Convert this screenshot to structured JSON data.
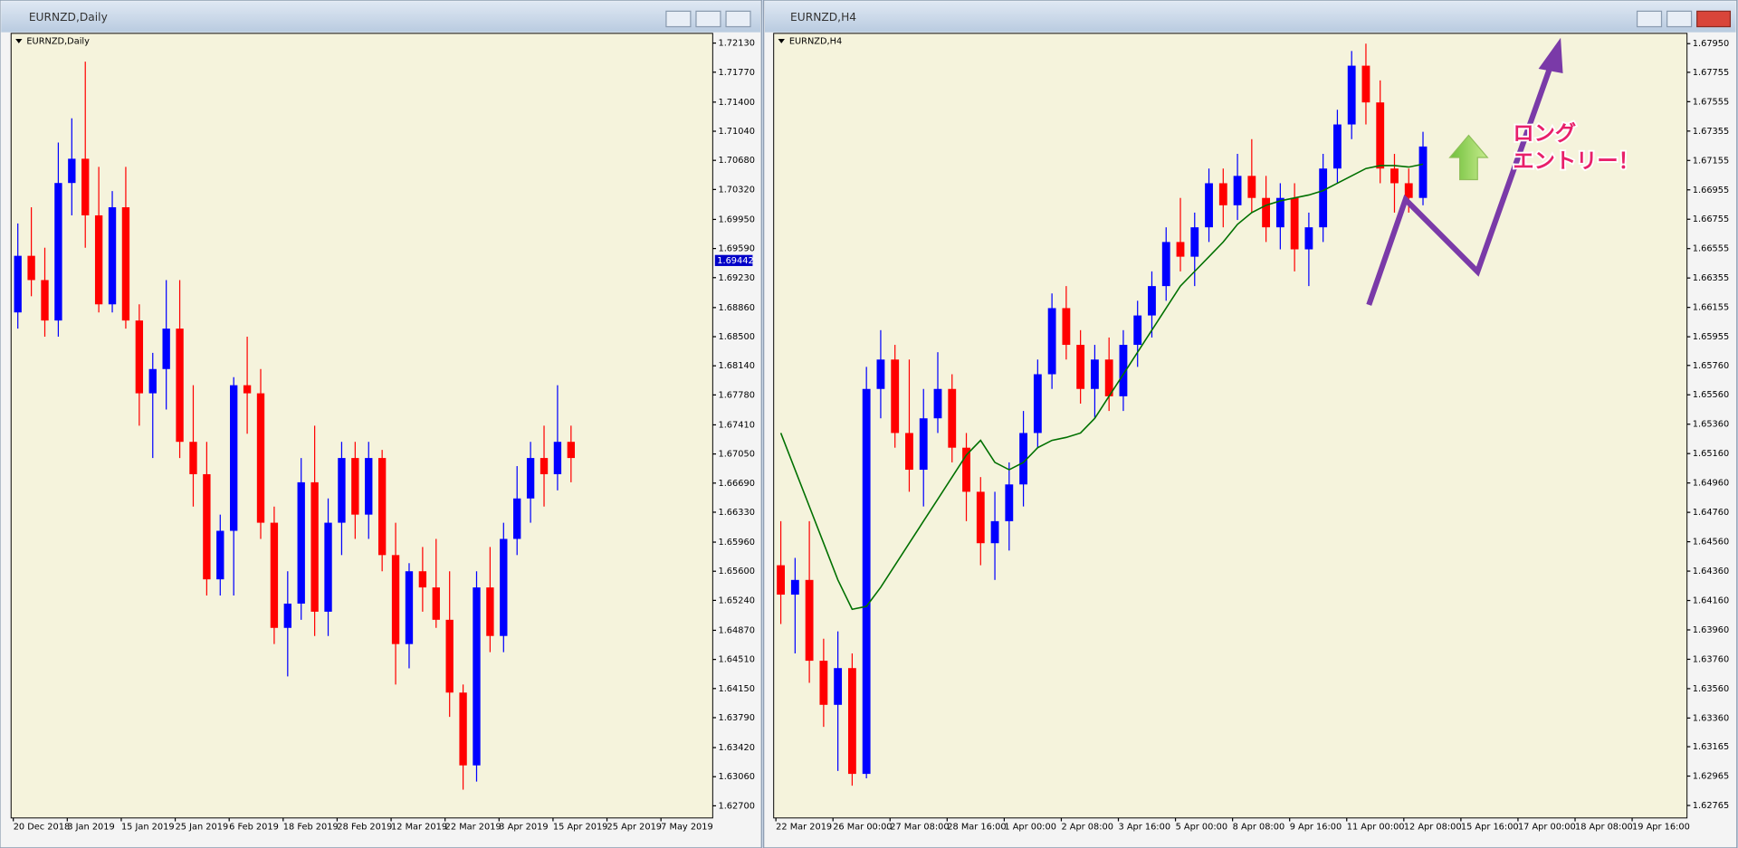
{
  "windows": [
    {
      "title": "EURNZD,Daily"
    },
    {
      "title": "EURNZD,H4"
    }
  ],
  "chart_data": [
    {
      "type": "candlestick",
      "label": "EURNZD,Daily",
      "up_color": "#0000ff",
      "down_color": "#ff0000",
      "background": "#f5f3dc",
      "categories": [
        "20 Dec 2018",
        null,
        null,
        null,
        "3 Jan 2019",
        null,
        null,
        null,
        "15 Jan 2019",
        null,
        null,
        null,
        "25 Jan 2019",
        null,
        null,
        null,
        "6 Feb 2019",
        null,
        null,
        null,
        "18 Feb 2019",
        null,
        null,
        null,
        "28 Feb 2019",
        null,
        null,
        null,
        "12 Mar 2019",
        null,
        null,
        null,
        "22 Mar 2019",
        null,
        null,
        null,
        "3 Apr 2019",
        null,
        null,
        null,
        "15 Apr 2019",
        null,
        null,
        null,
        "25 Apr 2019",
        null,
        null,
        null,
        "7 May 2019",
        null,
        null,
        null
      ],
      "ohlc": [
        [
          1.688,
          1.699,
          1.686,
          1.695
        ],
        [
          1.695,
          1.701,
          1.69,
          1.692
        ],
        [
          1.692,
          1.696,
          1.685,
          1.687
        ],
        [
          1.687,
          1.709,
          1.685,
          1.704
        ],
        [
          1.704,
          1.712,
          1.7,
          1.707
        ],
        [
          1.707,
          1.719,
          1.696,
          1.7
        ],
        [
          1.7,
          1.706,
          1.688,
          1.689
        ],
        [
          1.689,
          1.703,
          1.688,
          1.701
        ],
        [
          1.701,
          1.706,
          1.686,
          1.687
        ],
        [
          1.687,
          1.689,
          1.674,
          1.678
        ],
        [
          1.678,
          1.683,
          1.67,
          1.681
        ],
        [
          1.681,
          1.692,
          1.676,
          1.686
        ],
        [
          1.686,
          1.692,
          1.67,
          1.672
        ],
        [
          1.672,
          1.679,
          1.664,
          1.668
        ],
        [
          1.668,
          1.672,
          1.653,
          1.655
        ],
        [
          1.655,
          1.663,
          1.653,
          1.661
        ],
        [
          1.661,
          1.68,
          1.653,
          1.679
        ],
        [
          1.679,
          1.685,
          1.673,
          1.678
        ],
        [
          1.678,
          1.681,
          1.66,
          1.662
        ],
        [
          1.662,
          1.664,
          1.647,
          1.649
        ],
        [
          1.649,
          1.656,
          1.643,
          1.652
        ],
        [
          1.652,
          1.67,
          1.65,
          1.667
        ],
        [
          1.667,
          1.674,
          1.648,
          1.651
        ],
        [
          1.651,
          1.665,
          1.648,
          1.662
        ],
        [
          1.662,
          1.672,
          1.658,
          1.67
        ],
        [
          1.67,
          1.672,
          1.66,
          1.663
        ],
        [
          1.663,
          1.672,
          1.66,
          1.67
        ],
        [
          1.67,
          1.671,
          1.656,
          1.658
        ],
        [
          1.658,
          1.662,
          1.642,
          1.647
        ],
        [
          1.647,
          1.657,
          1.644,
          1.656
        ],
        [
          1.656,
          1.659,
          1.651,
          1.654
        ],
        [
          1.654,
          1.66,
          1.649,
          1.65
        ],
        [
          1.65,
          1.656,
          1.638,
          1.641
        ],
        [
          1.641,
          1.642,
          1.629,
          1.632
        ],
        [
          1.632,
          1.656,
          1.63,
          1.654
        ],
        [
          1.654,
          1.659,
          1.646,
          1.648
        ],
        [
          1.648,
          1.662,
          1.646,
          1.66
        ],
        [
          1.66,
          1.669,
          1.658,
          1.665
        ],
        [
          1.665,
          1.672,
          1.662,
          1.67
        ],
        [
          1.67,
          1.674,
          1.664,
          1.668
        ],
        [
          1.668,
          1.679,
          1.666,
          1.672
        ],
        [
          1.672,
          1.674,
          1.667,
          1.67
        ],
        null,
        null,
        null,
        null,
        null,
        null,
        null,
        null,
        null,
        null
      ],
      "ylim": [
        1.6255,
        1.7225
      ],
      "yticks": [
        {
          "value": 1.7213,
          "label": "1.72130"
        },
        {
          "value": 1.7177,
          "label": "1.71770"
        },
        {
          "value": 1.714,
          "label": "1.71400"
        },
        {
          "value": 1.7104,
          "label": "1.71040"
        },
        {
          "value": 1.7068,
          "label": "1.70680"
        },
        {
          "value": 1.7032,
          "label": "1.70320"
        },
        {
          "value": 1.6995,
          "label": "1.69950"
        },
        {
          "value": 1.6959,
          "label": "1.69590"
        },
        {
          "value": 1.6923,
          "label": "1.69230"
        },
        {
          "value": 1.6886,
          "label": "1.68860"
        },
        {
          "value": 1.685,
          "label": "1.68500"
        },
        {
          "value": 1.6814,
          "label": "1.68140"
        },
        {
          "value": 1.6778,
          "label": "1.67780"
        },
        {
          "value": 1.6741,
          "label": "1.67410"
        },
        {
          "value": 1.6705,
          "label": "1.67050"
        },
        {
          "value": 1.6669,
          "label": "1.66690"
        },
        {
          "value": 1.6633,
          "label": "1.66330"
        },
        {
          "value": 1.6596,
          "label": "1.65960"
        },
        {
          "value": 1.656,
          "label": "1.65600"
        },
        {
          "value": 1.6524,
          "label": "1.65240"
        },
        {
          "value": 1.6487,
          "label": "1.64870"
        },
        {
          "value": 1.6451,
          "label": "1.64510"
        },
        {
          "value": 1.6415,
          "label": "1.64150"
        },
        {
          "value": 1.6379,
          "label": "1.63790"
        },
        {
          "value": 1.6342,
          "label": "1.63420"
        },
        {
          "value": 1.6306,
          "label": "1.63060"
        },
        {
          "value": 1.627,
          "label": "1.62700"
        }
      ],
      "price_marker": {
        "value": 1.69442,
        "label": "1.69442"
      }
    },
    {
      "type": "candlestick",
      "label": "EURNZD,H4",
      "up_color": "#0000ff",
      "down_color": "#ff0000",
      "background": "#f5f3dc",
      "categories": [
        "22 Mar 2019",
        null,
        null,
        null,
        "26 Mar 00:00",
        null,
        null,
        null,
        "27 Mar 08:00",
        null,
        null,
        null,
        "28 Mar 16:00",
        null,
        null,
        null,
        "1 Apr 00:00",
        null,
        null,
        null,
        "2 Apr 08:00",
        null,
        null,
        null,
        "3 Apr 16:00",
        null,
        null,
        null,
        "5 Apr 00:00",
        null,
        null,
        null,
        "8 Apr 08:00",
        null,
        null,
        null,
        "9 Apr 16:00",
        null,
        null,
        null,
        "11 Apr 00:00",
        null,
        null,
        null,
        "12 Apr 08:00",
        null,
        null,
        null,
        "15 Apr 16:00",
        null,
        null,
        null,
        "17 Apr 00:00",
        null,
        null,
        null,
        "18 Apr 08:00",
        null,
        null,
        null,
        "19 Apr 16:00",
        null,
        null,
        null
      ],
      "ohlc": [
        [
          1.644,
          1.647,
          1.64,
          1.642
        ],
        [
          1.642,
          1.6445,
          1.638,
          1.643
        ],
        [
          1.643,
          1.647,
          1.636,
          1.6375
        ],
        [
          1.6375,
          1.639,
          1.633,
          1.6345
        ],
        [
          1.6345,
          1.6395,
          1.63,
          1.637
        ],
        [
          1.637,
          1.638,
          1.629,
          1.6298
        ],
        [
          1.6298,
          1.6575,
          1.6295,
          1.656
        ],
        [
          1.656,
          1.66,
          1.654,
          1.658
        ],
        [
          1.658,
          1.659,
          1.652,
          1.653
        ],
        [
          1.653,
          1.658,
          1.649,
          1.6505
        ],
        [
          1.6505,
          1.656,
          1.648,
          1.654
        ],
        [
          1.654,
          1.6585,
          1.653,
          1.656
        ],
        [
          1.656,
          1.657,
          1.651,
          1.652
        ],
        [
          1.652,
          1.653,
          1.647,
          1.649
        ],
        [
          1.649,
          1.65,
          1.644,
          1.6455
        ],
        [
          1.6455,
          1.649,
          1.643,
          1.647
        ],
        [
          1.647,
          1.651,
          1.645,
          1.6495
        ],
        [
          1.6495,
          1.6545,
          1.648,
          1.653
        ],
        [
          1.653,
          1.658,
          1.652,
          1.657
        ],
        [
          1.657,
          1.6625,
          1.656,
          1.6615
        ],
        [
          1.6615,
          1.663,
          1.658,
          1.659
        ],
        [
          1.659,
          1.66,
          1.655,
          1.656
        ],
        [
          1.656,
          1.659,
          1.654,
          1.658
        ],
        [
          1.658,
          1.6595,
          1.6545,
          1.6555
        ],
        [
          1.6555,
          1.66,
          1.6545,
          1.659
        ],
        [
          1.659,
          1.662,
          1.6575,
          1.661
        ],
        [
          1.661,
          1.664,
          1.6595,
          1.663
        ],
        [
          1.663,
          1.667,
          1.662,
          1.666
        ],
        [
          1.666,
          1.669,
          1.664,
          1.665
        ],
        [
          1.665,
          1.668,
          1.663,
          1.667
        ],
        [
          1.667,
          1.671,
          1.666,
          1.67
        ],
        [
          1.67,
          1.671,
          1.667,
          1.6685
        ],
        [
          1.6685,
          1.672,
          1.6675,
          1.6705
        ],
        [
          1.6705,
          1.673,
          1.668,
          1.669
        ],
        [
          1.669,
          1.6705,
          1.666,
          1.667
        ],
        [
          1.667,
          1.67,
          1.6655,
          1.669
        ],
        [
          1.669,
          1.67,
          1.664,
          1.6655
        ],
        [
          1.6655,
          1.668,
          1.663,
          1.667
        ],
        [
          1.667,
          1.672,
          1.666,
          1.671
        ],
        [
          1.671,
          1.675,
          1.67,
          1.674
        ],
        [
          1.674,
          1.679,
          1.673,
          1.678
        ],
        [
          1.678,
          1.6795,
          1.674,
          1.6755
        ],
        [
          1.6755,
          1.677,
          1.67,
          1.671
        ],
        [
          1.671,
          1.672,
          1.668,
          1.67
        ],
        [
          1.67,
          1.671,
          1.668,
          1.669
        ],
        [
          1.669,
          1.6735,
          1.6685,
          1.6725
        ],
        null,
        null,
        null,
        null,
        null,
        null,
        null,
        null,
        null,
        null,
        null,
        null,
        null,
        null,
        null,
        null,
        null,
        null
      ],
      "ma": {
        "color": "#007000",
        "values": [
          1.653,
          1.6505,
          1.648,
          1.6455,
          1.643,
          1.641,
          1.6412,
          1.6425,
          1.644,
          1.6455,
          1.647,
          1.6485,
          1.65,
          1.6515,
          1.6525,
          1.651,
          1.6505,
          1.651,
          1.652,
          1.6525,
          1.6527,
          1.653,
          1.654,
          1.6555,
          1.657,
          1.6585,
          1.66,
          1.6615,
          1.663,
          1.664,
          1.665,
          1.666,
          1.6672,
          1.668,
          1.6685,
          1.6688,
          1.669,
          1.6692,
          1.6695,
          1.67,
          1.6705,
          1.671,
          1.6712,
          1.6712,
          1.6711,
          1.6713,
          null,
          null,
          null,
          null,
          null,
          null,
          null,
          null,
          null,
          null,
          null,
          null,
          null,
          null,
          null,
          null,
          null,
          null
        ]
      },
      "ylim": [
        1.6268,
        1.6802
      ],
      "yticks": [
        {
          "value": 1.6795,
          "label": "1.67950"
        },
        {
          "value": 1.67755,
          "label": "1.67755"
        },
        {
          "value": 1.67555,
          "label": "1.67555"
        },
        {
          "value": 1.67355,
          "label": "1.67355"
        },
        {
          "value": 1.67155,
          "label": "1.67155"
        },
        {
          "value": 1.66955,
          "label": "1.66955"
        },
        {
          "value": 1.66755,
          "label": "1.66755"
        },
        {
          "value": 1.66555,
          "label": "1.66555"
        },
        {
          "value": 1.66355,
          "label": "1.66355"
        },
        {
          "value": 1.66155,
          "label": "1.66155"
        },
        {
          "value": 1.65955,
          "label": "1.65955"
        },
        {
          "value": 1.6576,
          "label": "1.65760"
        },
        {
          "value": 1.6556,
          "label": "1.65560"
        },
        {
          "value": 1.6536,
          "label": "1.65360"
        },
        {
          "value": 1.6516,
          "label": "1.65160"
        },
        {
          "value": 1.6496,
          "label": "1.64960"
        },
        {
          "value": 1.6476,
          "label": "1.64760"
        },
        {
          "value": 1.6456,
          "label": "1.64560"
        },
        {
          "value": 1.6436,
          "label": "1.64360"
        },
        {
          "value": 1.6416,
          "label": "1.64160"
        },
        {
          "value": 1.6396,
          "label": "1.63960"
        },
        {
          "value": 1.6376,
          "label": "1.63760"
        },
        {
          "value": 1.6356,
          "label": "1.63560"
        },
        {
          "value": 1.6336,
          "label": "1.63360"
        },
        {
          "value": 1.63165,
          "label": "1.63165"
        },
        {
          "value": 1.62965,
          "label": "1.62965"
        },
        {
          "value": 1.62765,
          "label": "1.62765"
        }
      ],
      "annotations": [
        "ロング",
        "エントリー！"
      ]
    }
  ]
}
